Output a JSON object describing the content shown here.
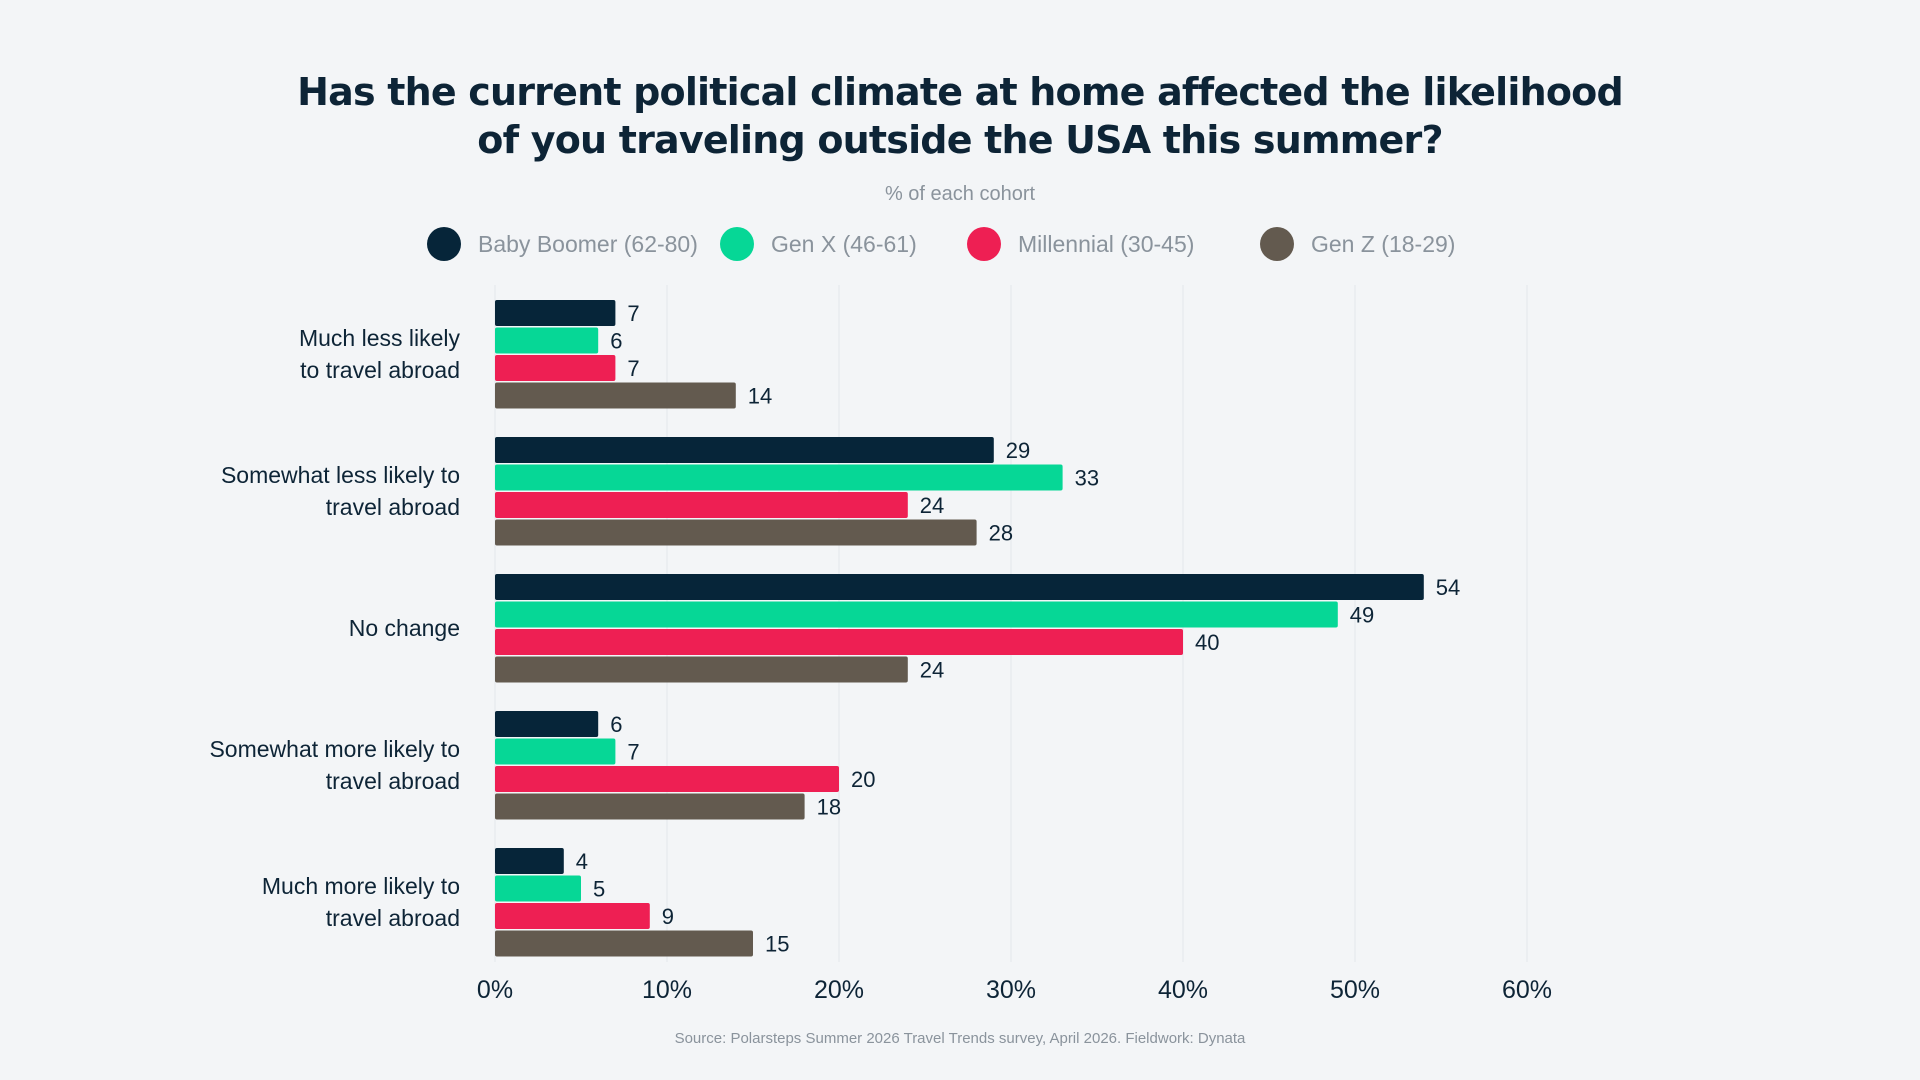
{
  "title_line1": "Has the current political climate at home affected the likelihood",
  "title_line2": "of you traveling outside the USA this summer?",
  "subtitle": "% of each cohort",
  "source": "Source: Polarsteps Summer 2026 Travel Trends survey, April 2026. Fieldwork: Dynata",
  "colors": {
    "background": "#f3f5f7",
    "text": "#0d2436",
    "muted": "#8a939c"
  },
  "chart_data": {
    "type": "bar",
    "orientation": "horizontal",
    "title": "Has the current political climate at home affected the likelihood of you traveling outside the USA this summer?",
    "subtitle": "% of each cohort",
    "categories": [
      [
        "Much less likely",
        "to travel abroad"
      ],
      [
        "Somewhat less likely to",
        "travel abroad"
      ],
      [
        "No change"
      ],
      [
        "Somewhat more likely to",
        "travel abroad"
      ],
      [
        "Much more likely to",
        "travel abroad"
      ]
    ],
    "series": [
      {
        "name": "Baby Boomer (62-80)",
        "color": "#062539",
        "values": [
          7,
          29,
          54,
          6,
          4
        ]
      },
      {
        "name": "Gen X (46-61)",
        "color": "#06d796",
        "values": [
          6,
          33,
          49,
          7,
          5
        ]
      },
      {
        "name": "Millennial (30-45)",
        "color": "#ee1f53",
        "values": [
          7,
          24,
          40,
          20,
          9
        ]
      },
      {
        "name": "Gen Z (18-29)",
        "color": "#635a4f",
        "values": [
          14,
          28,
          24,
          18,
          15
        ]
      }
    ],
    "xlim": [
      0,
      60
    ],
    "ticks": [
      "0%",
      "10%",
      "20%",
      "30%",
      "40%",
      "50%",
      "60%"
    ],
    "legend": "top-center",
    "grid": true,
    "data_labels": true
  }
}
